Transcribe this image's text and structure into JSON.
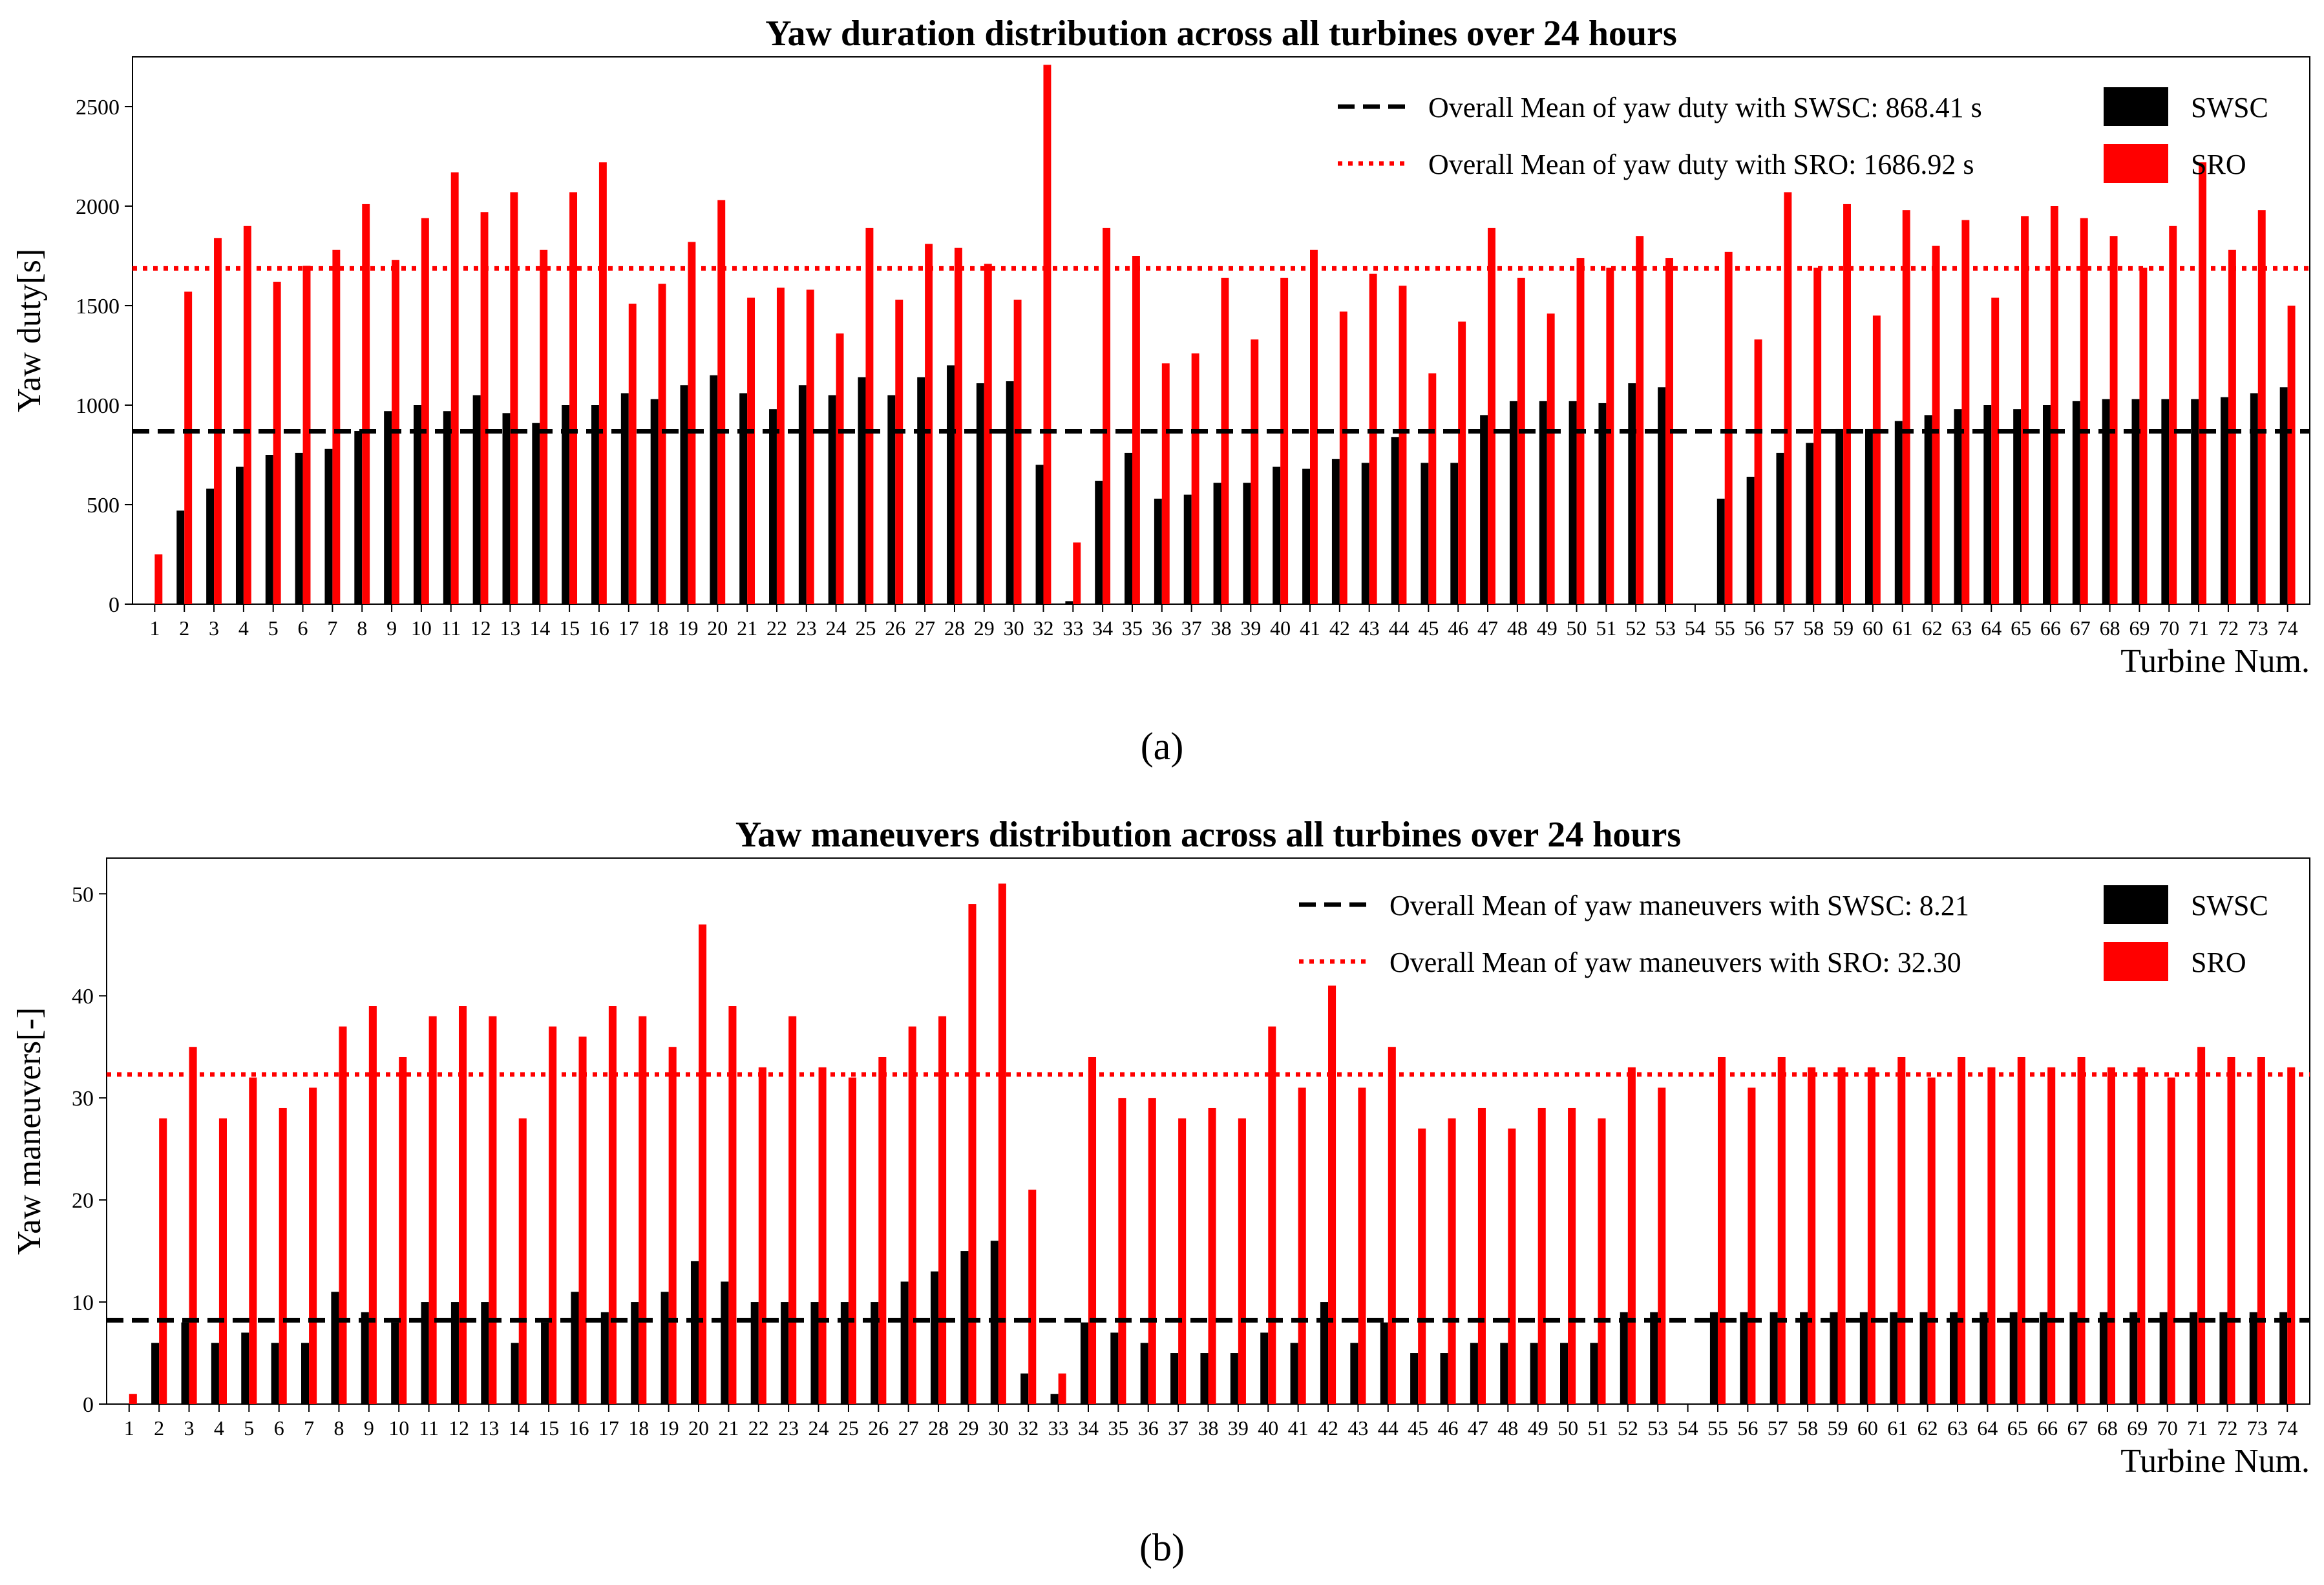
{
  "chart_data": [
    {
      "type": "bar",
      "panel": "a",
      "caption": "(a)",
      "title": "Yaw duration distribution across all turbines over 24 hours",
      "xlabel": "Turbine Num.",
      "ylabel": "Yaw duty[s]",
      "ylim": [
        0,
        2750
      ],
      "yticks": [
        "0",
        "500",
        "1000",
        "1500",
        "2000",
        "2500"
      ],
      "categories": [
        "1",
        "2",
        "3",
        "4",
        "5",
        "6",
        "7",
        "8",
        "9",
        "10",
        "11",
        "12",
        "13",
        "14",
        "15",
        "16",
        "17",
        "18",
        "19",
        "20",
        "21",
        "22",
        "23",
        "24",
        "25",
        "26",
        "27",
        "28",
        "29",
        "30",
        "32",
        "33",
        "34",
        "35",
        "36",
        "37",
        "38",
        "39",
        "40",
        "41",
        "42",
        "43",
        "44",
        "45",
        "46",
        "47",
        "48",
        "49",
        "50",
        "51",
        "52",
        "53",
        "54",
        "55",
        "56",
        "57",
        "58",
        "59",
        "60",
        "61",
        "62",
        "63",
        "64",
        "65",
        "66",
        "67",
        "68",
        "69",
        "70",
        "71",
        "72",
        "73",
        "74"
      ],
      "series": [
        {
          "name": "SWSC",
          "color": "#000000",
          "values": [
            0,
            470,
            580,
            690,
            750,
            760,
            780,
            870,
            970,
            1000,
            970,
            1050,
            960,
            910,
            1000,
            1000,
            1060,
            1030,
            1100,
            1150,
            1060,
            980,
            1100,
            1050,
            1140,
            1050,
            1140,
            1200,
            1110,
            1120,
            700,
            15,
            620,
            760,
            530,
            550,
            610,
            610,
            690,
            680,
            730,
            710,
            840,
            710,
            710,
            950,
            1020,
            1020,
            1020,
            1010,
            1110,
            1090,
            0,
            530,
            640,
            760,
            810,
            880,
            880,
            920,
            950,
            980,
            1000,
            980,
            1000,
            1020,
            1030,
            1030,
            1030,
            1030,
            1040,
            1060,
            1090
          ]
        },
        {
          "name": "SRO",
          "color": "#ff0000",
          "values": [
            250,
            1570,
            1840,
            1900,
            1620,
            1700,
            1780,
            2010,
            1730,
            1940,
            2170,
            1970,
            2070,
            1780,
            2070,
            2220,
            1510,
            1610,
            1820,
            2030,
            1540,
            1590,
            1580,
            1360,
            1890,
            1530,
            1810,
            1790,
            1710,
            1530,
            2710,
            310,
            1890,
            1750,
            1210,
            1260,
            1640,
            1330,
            1640,
            1780,
            1470,
            1660,
            1600,
            1160,
            1420,
            1890,
            1640,
            1460,
            1740,
            1690,
            1850,
            1740,
            0,
            1770,
            1330,
            2070,
            1690,
            2010,
            1450,
            1980,
            1800,
            1930,
            1540,
            1950,
            2000,
            1940,
            1850,
            1690,
            1900,
            2220,
            1780,
            1980,
            1500
          ]
        }
      ],
      "mean_lines": [
        {
          "label": "Overall Mean of yaw duty with SWSC: 868.41 s",
          "value": 868.41,
          "color": "#000000",
          "style": "dashed"
        },
        {
          "label": "Overall Mean of yaw duty with SRO: 1686.92 s",
          "value": 1686.92,
          "color": "#ff0000",
          "style": "dotted"
        }
      ],
      "legend": {
        "position": "top-right",
        "bar_labels": [
          "SWSC",
          "SRO"
        ]
      }
    },
    {
      "type": "bar",
      "panel": "b",
      "caption": "(b)",
      "title": "Yaw maneuvers distribution across all turbines over 24 hours",
      "xlabel": "Turbine Num.",
      "ylabel": "Yaw maneuvers[-]",
      "ylim": [
        0,
        53.5
      ],
      "yticks": [
        "0",
        "10",
        "20",
        "30",
        "40",
        "50"
      ],
      "categories": [
        "1",
        "2",
        "3",
        "4",
        "5",
        "6",
        "7",
        "8",
        "9",
        "10",
        "11",
        "12",
        "13",
        "14",
        "15",
        "16",
        "17",
        "18",
        "19",
        "20",
        "21",
        "22",
        "23",
        "24",
        "25",
        "26",
        "27",
        "28",
        "29",
        "30",
        "32",
        "33",
        "34",
        "35",
        "36",
        "37",
        "38",
        "39",
        "40",
        "41",
        "42",
        "43",
        "44",
        "45",
        "46",
        "47",
        "48",
        "49",
        "50",
        "51",
        "52",
        "53",
        "54",
        "55",
        "56",
        "57",
        "58",
        "59",
        "60",
        "61",
        "62",
        "63",
        "64",
        "65",
        "66",
        "67",
        "68",
        "69",
        "70",
        "71",
        "72",
        "73",
        "74"
      ],
      "series": [
        {
          "name": "SWSC",
          "color": "#000000",
          "values": [
            0,
            6,
            8,
            6,
            7,
            6,
            6,
            11,
            9,
            8,
            10,
            10,
            10,
            6,
            8,
            11,
            9,
            10,
            11,
            14,
            12,
            10,
            10,
            10,
            10,
            10,
            12,
            13,
            15,
            16,
            3,
            1,
            8,
            7,
            6,
            5,
            5,
            5,
            7,
            6,
            10,
            6,
            8,
            5,
            5,
            6,
            6,
            6,
            6,
            6,
            9,
            9,
            0,
            9,
            9,
            9,
            9,
            9,
            9,
            9,
            9,
            9,
            9,
            9,
            9,
            9,
            9,
            9,
            9,
            9,
            9,
            9,
            9
          ]
        },
        {
          "name": "SRO",
          "color": "#ff0000",
          "values": [
            1,
            28,
            35,
            28,
            32,
            29,
            31,
            37,
            39,
            34,
            38,
            39,
            38,
            28,
            37,
            36,
            39,
            38,
            35,
            47,
            39,
            33,
            38,
            33,
            32,
            34,
            37,
            38,
            49,
            51,
            21,
            3,
            34,
            30,
            30,
            28,
            29,
            28,
            37,
            31,
            41,
            31,
            35,
            27,
            28,
            29,
            27,
            29,
            29,
            28,
            33,
            31,
            0,
            34,
            31,
            34,
            33,
            33,
            33,
            34,
            32,
            34,
            33,
            34,
            33,
            34,
            33,
            33,
            32,
            35,
            34,
            34,
            33
          ]
        }
      ],
      "mean_lines": [
        {
          "label": "Overall Mean of yaw maneuvers with SWSC: 8.21",
          "value": 8.21,
          "color": "#000000",
          "style": "dashed"
        },
        {
          "label": "Overall Mean of yaw maneuvers with SRO: 32.30",
          "value": 32.3,
          "color": "#ff0000",
          "style": "dotted"
        }
      ],
      "legend": {
        "position": "top-right",
        "bar_labels": [
          "SWSC",
          "SRO"
        ]
      }
    }
  ]
}
